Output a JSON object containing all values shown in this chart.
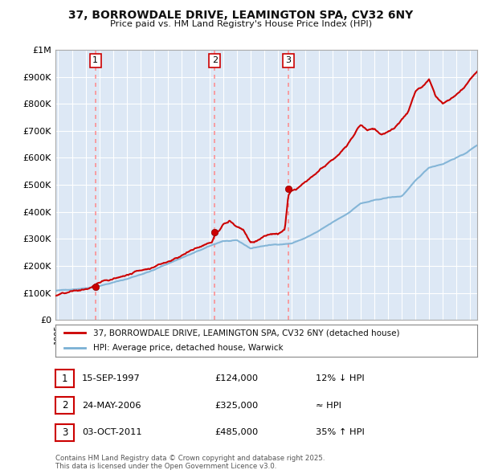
{
  "title": "37, BORROWDALE DRIVE, LEAMINGTON SPA, CV32 6NY",
  "subtitle": "Price paid vs. HM Land Registry's House Price Index (HPI)",
  "background_color": "#ffffff",
  "plot_background": "#dde8f5",
  "grid_color": "#ffffff",
  "ylim": [
    0,
    1000000
  ],
  "ytick_labels": [
    "£0",
    "£100K",
    "£200K",
    "£300K",
    "£400K",
    "£500K",
    "£600K",
    "£700K",
    "£800K",
    "£900K",
    "£1M"
  ],
  "xlim_start": 1994.8,
  "xlim_end": 2025.5,
  "transactions": [
    {
      "date": 1997.71,
      "price": 124000,
      "label": "1"
    },
    {
      "date": 2006.39,
      "price": 325000,
      "label": "2"
    },
    {
      "date": 2011.75,
      "price": 485000,
      "label": "3"
    }
  ],
  "legend_line1": "37, BORROWDALE DRIVE, LEAMINGTON SPA, CV32 6NY (detached house)",
  "legend_line2": "HPI: Average price, detached house, Warwick",
  "table_rows": [
    {
      "num": "1",
      "date": "15-SEP-1997",
      "price": "£124,000",
      "note": "12% ↓ HPI"
    },
    {
      "num": "2",
      "date": "24-MAY-2006",
      "price": "£325,000",
      "note": "≈ HPI"
    },
    {
      "num": "3",
      "date": "03-OCT-2011",
      "price": "£485,000",
      "note": "35% ↑ HPI"
    }
  ],
  "footer": "Contains HM Land Registry data © Crown copyright and database right 2025.\nThis data is licensed under the Open Government Licence v3.0.",
  "hpi_color": "#7ab0d4",
  "price_color": "#cc0000",
  "vline_color": "#ff8888"
}
